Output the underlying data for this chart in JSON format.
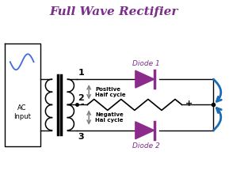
{
  "title": "Full Wave Rectifier",
  "title_color": "#7B2D8B",
  "title_fontsize": 11,
  "bg_color": "#FFFFFF",
  "ac_label": "AC\nInput",
  "diode1_label": "Diode 1",
  "diode2_label": "Diode 2",
  "pos_label": "Positive\nHalf cycle",
  "neg_label": "Negative\nHal cycle",
  "node1_label": "1",
  "node2_label": "2",
  "node3_label": "3",
  "diode_color": "#8B2B8B",
  "arrow_color": "#1A6BB5",
  "line_color": "#000000",
  "coil_color": "#000000",
  "sine_color": "#4169E1",
  "gray_arrow_color": "#808080",
  "dot_color": "#000000"
}
